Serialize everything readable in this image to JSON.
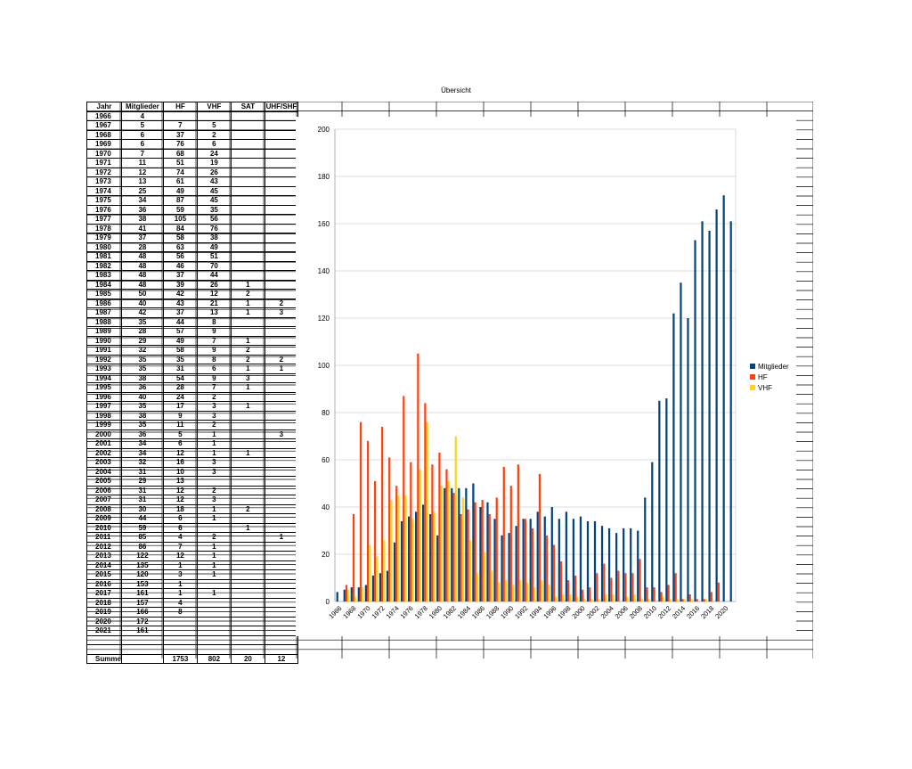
{
  "page": {
    "title": "Übersicht"
  },
  "table": {
    "headers": [
      "Jahr",
      "Mitglieder",
      "HF",
      "VHF",
      "SAT",
      "UHF/SHF"
    ],
    "rows": [
      [
        "1966",
        "4",
        "",
        "",
        "",
        ""
      ],
      [
        "1967",
        "5",
        "7",
        "5",
        "",
        ""
      ],
      [
        "1968",
        "6",
        "37",
        "2",
        "",
        ""
      ],
      [
        "1969",
        "6",
        "76",
        "6",
        "",
        ""
      ],
      [
        "1970",
        "7",
        "68",
        "24",
        "",
        ""
      ],
      [
        "1971",
        "11",
        "51",
        "19",
        "",
        ""
      ],
      [
        "1972",
        "12",
        "74",
        "26",
        "",
        ""
      ],
      [
        "1973",
        "13",
        "61",
        "43",
        "",
        ""
      ],
      [
        "1974",
        "25",
        "49",
        "45",
        "",
        ""
      ],
      [
        "1975",
        "34",
        "87",
        "45",
        "",
        ""
      ],
      [
        "1976",
        "36",
        "59",
        "35",
        "",
        ""
      ],
      [
        "1977",
        "38",
        "105",
        "56",
        "",
        ""
      ],
      [
        "1978",
        "41",
        "84",
        "76",
        "",
        ""
      ],
      [
        "1979",
        "37",
        "58",
        "38",
        "",
        ""
      ],
      [
        "1980",
        "28",
        "63",
        "49",
        "",
        ""
      ],
      [
        "1981",
        "48",
        "56",
        "51",
        "",
        ""
      ],
      [
        "1982",
        "48",
        "46",
        "70",
        "",
        ""
      ],
      [
        "1983",
        "48",
        "37",
        "44",
        "",
        ""
      ],
      [
        "1984",
        "48",
        "39",
        "26",
        "1",
        ""
      ],
      [
        "1985",
        "50",
        "42",
        "12",
        "2",
        ""
      ],
      [
        "1986",
        "40",
        "43",
        "21",
        "1",
        "2"
      ],
      [
        "1987",
        "42",
        "37",
        "13",
        "1",
        "3"
      ],
      [
        "1988",
        "35",
        "44",
        "8",
        "",
        ""
      ],
      [
        "1989",
        "28",
        "57",
        "9",
        "",
        ""
      ],
      [
        "1990",
        "29",
        "49",
        "7",
        "1",
        ""
      ],
      [
        "1991",
        "32",
        "58",
        "9",
        "2",
        ""
      ],
      [
        "1992",
        "35",
        "35",
        "8",
        "2",
        "2"
      ],
      [
        "1993",
        "35",
        "31",
        "6",
        "1",
        "1"
      ],
      [
        "1994",
        "38",
        "54",
        "9",
        "3",
        ""
      ],
      [
        "1995",
        "36",
        "28",
        "7",
        "1",
        ""
      ],
      [
        "1996",
        "40",
        "24",
        "2",
        "",
        ""
      ],
      [
        "1997",
        "35",
        "17",
        "3",
        "1",
        ""
      ],
      [
        "1998",
        "38",
        "9",
        "3",
        "",
        ""
      ],
      [
        "1999",
        "35",
        "11",
        "2",
        "",
        ""
      ],
      [
        "2000",
        "36",
        "5",
        "1",
        "",
        "3"
      ],
      [
        "2001",
        "34",
        "6",
        "1",
        "",
        ""
      ],
      [
        "2002",
        "34",
        "12",
        "1",
        "1",
        ""
      ],
      [
        "2003",
        "32",
        "16",
        "3",
        "",
        ""
      ],
      [
        "2004",
        "31",
        "10",
        "3",
        "",
        ""
      ],
      [
        "2005",
        "29",
        "13",
        "",
        "",
        ""
      ],
      [
        "2006",
        "31",
        "12",
        "2",
        "",
        ""
      ],
      [
        "2007",
        "31",
        "12",
        "3",
        "",
        ""
      ],
      [
        "2008",
        "30",
        "18",
        "1",
        "2",
        ""
      ],
      [
        "2009",
        "44",
        "6",
        "1",
        "",
        ""
      ],
      [
        "2010",
        "59",
        "6",
        "",
        "1",
        ""
      ],
      [
        "2011",
        "85",
        "4",
        "2",
        "",
        "1"
      ],
      [
        "2012",
        "86",
        "7",
        "1",
        "",
        ""
      ],
      [
        "2013",
        "122",
        "12",
        "1",
        "",
        ""
      ],
      [
        "2014",
        "135",
        "1",
        "1",
        "",
        ""
      ],
      [
        "2015",
        "120",
        "3",
        "1",
        "",
        ""
      ],
      [
        "2016",
        "153",
        "1",
        "",
        "",
        ""
      ],
      [
        "2017",
        "161",
        "1",
        "1",
        "",
        ""
      ],
      [
        "2018",
        "157",
        "4",
        "",
        "",
        ""
      ],
      [
        "2019",
        "166",
        "8",
        "",
        "",
        ""
      ],
      [
        "2020",
        "172",
        "",
        "",
        "",
        ""
      ],
      [
        "2021",
        "161",
        "",
        "",
        "",
        ""
      ]
    ],
    "summary": [
      "Summe",
      "",
      "1753",
      "802",
      "20",
      "12"
    ]
  },
  "chart_data": {
    "type": "bar",
    "title": "",
    "xlabel": "",
    "ylabel": "",
    "ylim": [
      0,
      200
    ],
    "yticks": [
      0,
      20,
      40,
      60,
      80,
      100,
      120,
      140,
      160,
      180,
      200
    ],
    "grid": true,
    "legend": "right",
    "categories": [
      "1966",
      "1967",
      "1968",
      "1969",
      "1970",
      "1971",
      "1972",
      "1973",
      "1974",
      "1975",
      "1976",
      "1977",
      "1978",
      "1979",
      "1980",
      "1981",
      "1982",
      "1983",
      "1984",
      "1985",
      "1986",
      "1987",
      "1988",
      "1989",
      "1990",
      "1991",
      "1992",
      "1993",
      "1994",
      "1995",
      "1996",
      "1997",
      "1998",
      "1999",
      "2000",
      "2001",
      "2002",
      "2003",
      "2004",
      "2005",
      "2006",
      "2007",
      "2008",
      "2009",
      "2010",
      "2011",
      "2012",
      "2013",
      "2014",
      "2015",
      "2016",
      "2017",
      "2018",
      "2019",
      "2020",
      "2021"
    ],
    "x_tick_labels": [
      "1966",
      "1968",
      "1970",
      "1972",
      "1974",
      "1976",
      "1978",
      "1980",
      "1982",
      "1984",
      "1986",
      "1988",
      "1990",
      "1992",
      "1994",
      "1996",
      "1998",
      "2000",
      "2002",
      "2004",
      "2006",
      "2008",
      "2010",
      "2012",
      "2014",
      "2016",
      "2018",
      "2020"
    ],
    "series": [
      {
        "name": "Mitglieder",
        "color": "#004586",
        "values": [
          4,
          5,
          6,
          6,
          7,
          11,
          12,
          13,
          25,
          34,
          36,
          38,
          41,
          37,
          28,
          48,
          48,
          48,
          48,
          50,
          40,
          42,
          35,
          28,
          29,
          32,
          35,
          35,
          38,
          36,
          40,
          35,
          38,
          35,
          36,
          34,
          34,
          32,
          31,
          29,
          31,
          31,
          30,
          44,
          59,
          85,
          86,
          122,
          135,
          120,
          153,
          161,
          157,
          166,
          172,
          161
        ]
      },
      {
        "name": "HF",
        "color": "#ff420e",
        "values": [
          0,
          7,
          37,
          76,
          68,
          51,
          74,
          61,
          49,
          87,
          59,
          105,
          84,
          58,
          63,
          56,
          46,
          37,
          39,
          42,
          43,
          37,
          44,
          57,
          49,
          58,
          35,
          31,
          54,
          28,
          24,
          17,
          9,
          11,
          5,
          6,
          12,
          16,
          10,
          13,
          12,
          12,
          18,
          6,
          6,
          4,
          7,
          12,
          1,
          3,
          1,
          1,
          4,
          8,
          0,
          0
        ]
      },
      {
        "name": "VHF",
        "color": "#ffd320",
        "values": [
          0,
          5,
          2,
          6,
          24,
          19,
          26,
          43,
          45,
          45,
          35,
          56,
          76,
          38,
          49,
          51,
          70,
          44,
          26,
          12,
          21,
          13,
          8,
          9,
          7,
          9,
          8,
          6,
          9,
          7,
          2,
          3,
          3,
          2,
          1,
          1,
          1,
          3,
          3,
          0,
          2,
          3,
          1,
          1,
          0,
          2,
          1,
          1,
          1,
          1,
          0,
          1,
          0,
          0,
          0,
          0
        ]
      }
    ]
  }
}
